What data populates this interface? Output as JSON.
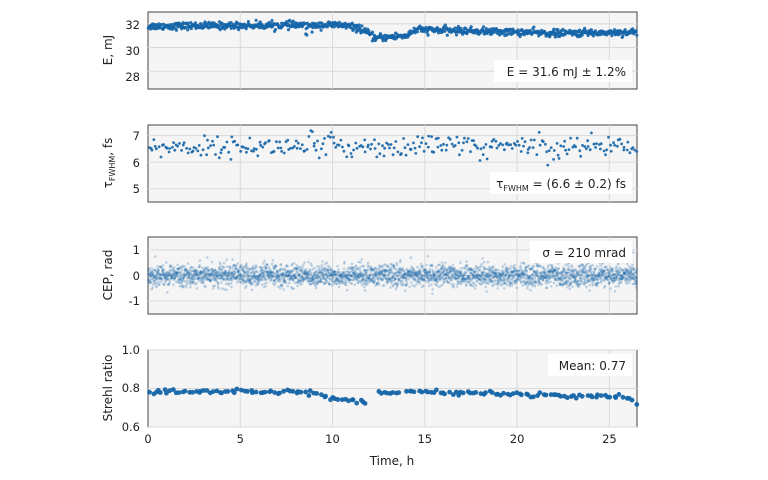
{
  "chart_data": [
    {
      "type": "scatter",
      "ylabel": "E, mJ",
      "xlim": [
        0,
        26.5
      ],
      "ylim": [
        26.5,
        33
      ],
      "yticks": [
        "28",
        "30",
        "32"
      ],
      "grid": true,
      "annotation": "E = 31.6 mJ ± 1.2%",
      "color": "#1565a8",
      "trend": [
        [
          0,
          31.8
        ],
        [
          8.5,
          31.9
        ],
        [
          9.0,
          31.9
        ],
        [
          10.5,
          31.9
        ],
        [
          11.5,
          31.6
        ],
        [
          12.3,
          30.8
        ],
        [
          14.0,
          31.0
        ],
        [
          14.5,
          31.5
        ],
        [
          17.5,
          31.4
        ],
        [
          20.0,
          31.3
        ],
        [
          22.0,
          31.2
        ],
        [
          26.5,
          31.3
        ]
      ]
    },
    {
      "type": "scatter",
      "ylabel": "τFWHM, fs",
      "ylabel_main": "τ",
      "ylabel_sub": "FWHM",
      "ylabel_tail": ", fs",
      "xlim": [
        0,
        26.5
      ],
      "ylim": [
        4.5,
        7.4
      ],
      "yticks": [
        "5",
        "6",
        "7"
      ],
      "grid": true,
      "annotation": "τFWHM = (6.6 ± 0.2) fs",
      "annotation_main": "τ",
      "annotation_sub": "FWHM",
      "annotation_tail": " = (6.6 ± 0.2) fs",
      "color": "#1565a8",
      "trend": [
        [
          0,
          6.55
        ],
        [
          9.0,
          6.6
        ],
        [
          26.5,
          6.6
        ]
      ]
    },
    {
      "type": "scatter",
      "ylabel": "CEP, rad",
      "xlim": [
        0,
        26.5
      ],
      "ylim": [
        -1.5,
        1.5
      ],
      "yticks": [
        "-1",
        "0",
        "1"
      ],
      "grid": true,
      "annotation": "σ = 210 mrad",
      "color": "#1565a8",
      "trend": [
        [
          0,
          0.0
        ],
        [
          26.5,
          0.0
        ]
      ],
      "sigma": 0.21
    },
    {
      "type": "scatter",
      "ylabel": "Strehl ratio",
      "xlabel": "Time, h",
      "xlim": [
        0,
        26.5
      ],
      "ylim": [
        0.6,
        1.0
      ],
      "yticks": [
        "0.6",
        "0.8",
        "1.0"
      ],
      "xticks": [
        "0",
        "5",
        "10",
        "15",
        "20",
        "25"
      ],
      "grid": true,
      "annotation": "Mean: 0.77",
      "color": "#1565a8",
      "trend": [
        [
          0,
          0.785
        ],
        [
          9.0,
          0.78
        ],
        [
          9.5,
          0.757
        ],
        [
          11.8,
          0.73
        ],
        [
          12.5,
          0.78
        ],
        [
          13.8,
          0.78
        ],
        [
          14.2,
          0.784
        ],
        [
          26.0,
          0.755
        ],
        [
          26.5,
          0.72
        ]
      ],
      "gaps": [
        [
          11.9,
          12.45
        ],
        [
          13.65,
          13.95
        ]
      ]
    }
  ]
}
